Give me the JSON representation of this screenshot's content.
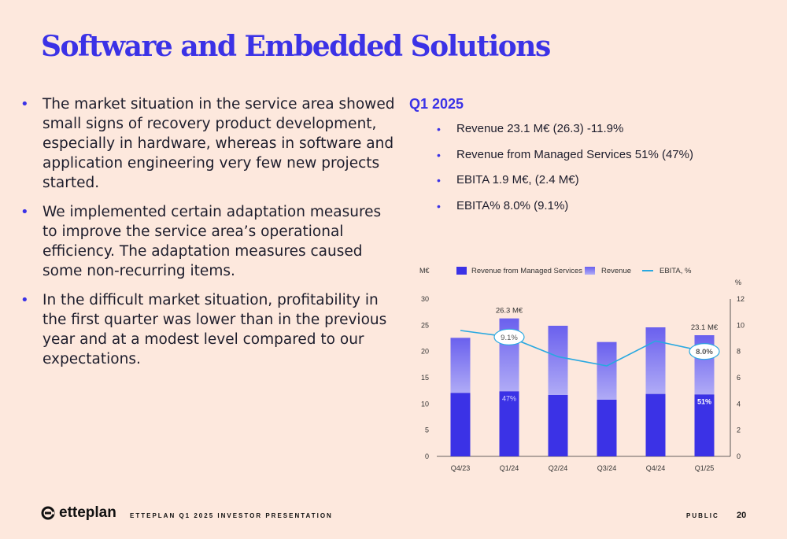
{
  "title": "Software and Embedded Solutions",
  "left_bullets": [
    "The market situation in the service area showed small signs of recovery product development, especially in hardware, whereas in software and application engineering very few new projects started.",
    "We implemented certain adaptation measures to improve the service area’s operational efficiency. The adaptation measures caused some non-recurring items.",
    "In the difficult market situation, profitability in the first quarter was lower than in the previous year and at a modest level compared to our expectations."
  ],
  "quarter_title": "Q1 2025",
  "right_bullets": [
    "Revenue 23.1 M€ (26.3) -11.9%",
    "Revenue from Managed Services 51% (47%)",
    "EBITA 1.9 M€, (2.4 M€)",
    "EBITA% 8.0% (9.1%)"
  ],
  "footer": {
    "logo_text": "etteplan",
    "presentation": "ETTEPLAN Q1 2025 INVESTOR PRESENTATION",
    "classification": "PUBLIC",
    "page": "20"
  },
  "colors": {
    "accent": "#3b32e6",
    "revenue_top": "#9a93f4",
    "ebita_line": "#29a8e0",
    "background": "#fde8dd"
  },
  "chart_data": {
    "type": "bar",
    "categories": [
      "Q4/23",
      "Q1/24",
      "Q2/24",
      "Q3/24",
      "Q4/24",
      "Q1/25"
    ],
    "series": [
      {
        "name": "Revenue from Managed Services",
        "type": "bar",
        "axis": "left",
        "values": [
          12.1,
          12.4,
          11.7,
          10.8,
          11.9,
          11.8
        ]
      },
      {
        "name": "Revenue",
        "type": "bar",
        "axis": "left",
        "values": [
          22.6,
          26.3,
          24.9,
          21.8,
          24.6,
          23.1
        ]
      },
      {
        "name": "EBITA, %",
        "type": "line",
        "axis": "right",
        "values": [
          9.6,
          9.1,
          7.6,
          6.9,
          8.8,
          8.0
        ]
      }
    ],
    "left_axis": {
      "unit": "M€",
      "ylim": [
        0,
        30
      ],
      "ticks": [
        "0",
        "5",
        "10",
        "15",
        "20",
        "25",
        "30"
      ]
    },
    "right_axis": {
      "unit": "%",
      "ylim": [
        0,
        12
      ],
      "ticks": [
        "0",
        "2",
        "4",
        "6",
        "8",
        "10",
        "12"
      ]
    },
    "legend_position": "top",
    "annotations": {
      "bar_labels": [
        {
          "index": 1,
          "text": "26.3 M€"
        },
        {
          "index": 5,
          "text": "23.1 M€"
        }
      ],
      "share_labels": [
        {
          "index": 1,
          "text": "47%"
        },
        {
          "index": 5,
          "text": "51%"
        }
      ],
      "line_labels": [
        {
          "index": 1,
          "text": "9.1%"
        },
        {
          "index": 5,
          "text": "8.0%"
        }
      ]
    }
  }
}
